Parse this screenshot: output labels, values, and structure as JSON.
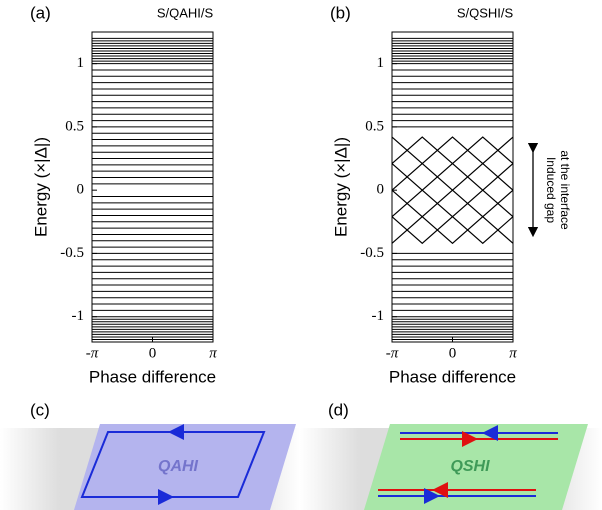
{
  "chart_data": [
    {
      "type": "line",
      "panel_label": "(a)",
      "title": "S/QAHI/S",
      "xlabel": "Phase difference",
      "ylabel": "Energy (×|Δ|)",
      "xlim": [
        -3.14159,
        3.14159
      ],
      "ylim": [
        -1.2,
        1.25
      ],
      "xticks": [
        {
          "value": -3.14159,
          "label": "-π"
        },
        0,
        {
          "value": 3.14159,
          "label": "π"
        }
      ],
      "yticks": [
        -1,
        -0.5,
        0,
        0.5,
        1
      ],
      "levels": [
        -1.2,
        -1.18,
        -1.16,
        -1.14,
        -1.12,
        -1.1,
        -1.08,
        -1.06,
        -1.04,
        -1.02,
        -1.0,
        -0.95,
        -0.9,
        -0.85,
        -0.8,
        -0.75,
        -0.7,
        -0.65,
        -0.6,
        -0.55,
        -0.5,
        -0.45,
        -0.4,
        -0.35,
        -0.3,
        -0.25,
        -0.2,
        -0.15,
        -0.1,
        -0.05,
        0.05,
        0.1,
        0.15,
        0.2,
        0.25,
        0.3,
        0.35,
        0.4,
        0.45,
        0.5,
        0.55,
        0.6,
        0.65,
        0.7,
        0.75,
        0.8,
        0.85,
        0.9,
        0.95,
        1.0,
        1.02,
        1.04,
        1.06,
        1.08,
        1.1,
        1.12,
        1.14,
        1.16,
        1.18,
        1.2
      ],
      "color": "#000000"
    },
    {
      "type": "line",
      "panel_label": "(b)",
      "title": "S/QSHI/S",
      "xlabel": "Phase difference",
      "ylabel": "Energy (×|Δ|)",
      "xlim": [
        -3.14159,
        3.14159
      ],
      "ylim": [
        -1.2,
        1.25
      ],
      "xticks": [
        {
          "value": -3.14159,
          "label": "-π"
        },
        0,
        {
          "value": 3.14159,
          "label": "π"
        }
      ],
      "yticks": [
        -1,
        -0.5,
        0,
        0.5,
        1
      ],
      "levels": [
        -1.2,
        -1.18,
        -1.16,
        -1.14,
        -1.12,
        -1.1,
        -1.08,
        -1.06,
        -1.04,
        -1.02,
        -1.0,
        -0.95,
        -0.9,
        -0.85,
        -0.8,
        -0.75,
        -0.7,
        -0.65,
        -0.6,
        -0.55,
        -0.5,
        0.5,
        0.55,
        0.6,
        0.65,
        0.7,
        0.75,
        0.8,
        0.85,
        0.9,
        0.95,
        1.0,
        1.02,
        1.04,
        1.06,
        1.08,
        1.1,
        1.12,
        1.14,
        1.16,
        1.18,
        1.2
      ],
      "x": [
        -3.14159,
        -1.5708,
        0,
        1.5708,
        3.14159
      ],
      "series": [
        {
          "color": "#000000",
          "values": [
            0.42,
            0.21,
            0.42,
            0.21,
            0.42
          ]
        },
        {
          "color": "#000000",
          "values": [
            0.21,
            0.42,
            0.21,
            0.42,
            0.21
          ]
        },
        {
          "color": "#000000",
          "values": [
            0.21,
            0.0,
            0.21,
            0.0,
            0.21
          ]
        },
        {
          "color": "#000000",
          "values": [
            0.0,
            0.21,
            0.0,
            0.21,
            0.0
          ]
        },
        {
          "color": "#000000",
          "values": [
            0.0,
            -0.21,
            0.0,
            -0.21,
            0.0
          ]
        },
        {
          "color": "#000000",
          "values": [
            -0.21,
            0.0,
            -0.21,
            0.0,
            -0.21
          ]
        },
        {
          "color": "#000000",
          "values": [
            -0.21,
            -0.42,
            -0.21,
            -0.42,
            -0.21
          ]
        },
        {
          "color": "#000000",
          "values": [
            -0.42,
            -0.21,
            -0.42,
            -0.21,
            -0.42
          ]
        }
      ],
      "annotation": [
        "Induced gap",
        "at the interface"
      ],
      "color": "#000000"
    }
  ],
  "diagrams": [
    {
      "panel_label": "(c)",
      "text": "QAHI"
    },
    {
      "panel_label": "(d)",
      "text": "QSHI"
    }
  ]
}
